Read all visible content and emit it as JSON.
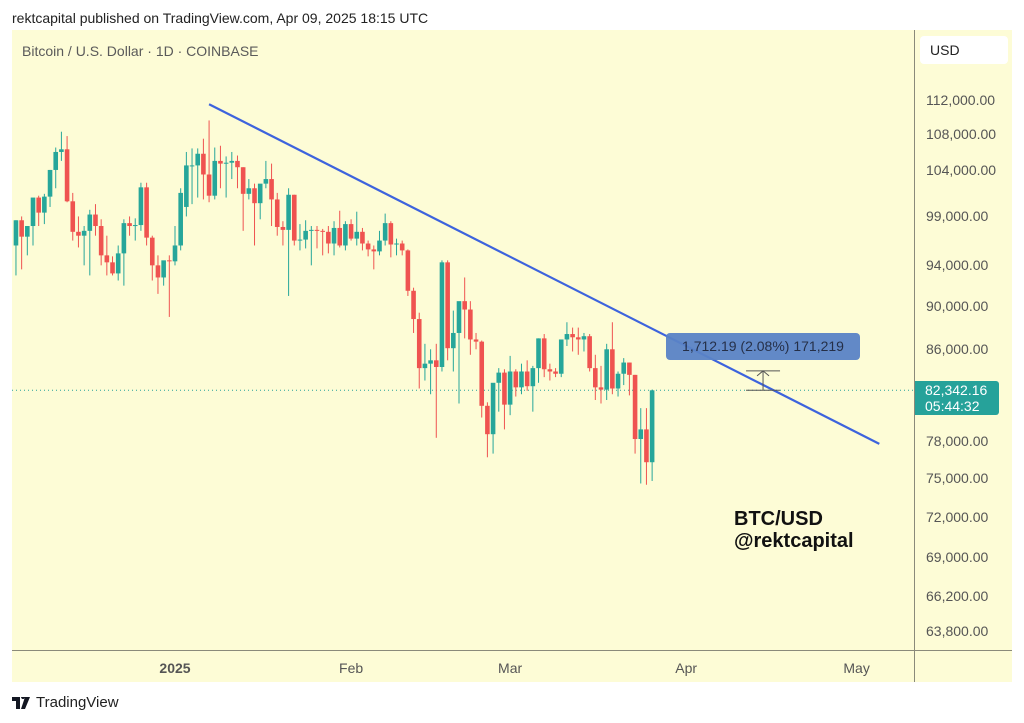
{
  "header": {
    "published_line": "rektcapital published on TradingView.com, Apr 09, 2025 18:15 UTC"
  },
  "chart_title": "Bitcoin / U.S. Dollar · 1D · COINBASE",
  "currency_button": "USD",
  "last_price": {
    "value": "82,342.16",
    "countdown": "05:44:32",
    "color": "#26a29a"
  },
  "measure_label": "1,712.19 (2.08%) 171,219",
  "watermark": {
    "line1": "BTC/USD",
    "line2": "@rektcapital"
  },
  "footer": {
    "logo_text": "TradingView"
  },
  "colors": {
    "up": "#26a69a",
    "down": "#ef5350",
    "trendline": "#3d63dd",
    "background": "#fdfcd6"
  },
  "chart_data": {
    "type": "candlestick",
    "title": "Bitcoin / U.S. Dollar · 1D · COINBASE",
    "xlabel": "",
    "ylabel": "USD",
    "y_scale": "log",
    "y_ticks": [
      112000,
      108000,
      104000,
      99000,
      94000,
      90000,
      86000,
      78000,
      75000,
      72000,
      69000,
      66200,
      63800
    ],
    "y_tick_labels": [
      "112,000.00",
      "108,000.00",
      "104,000.00",
      "99,000.00",
      "94,000.00",
      "90,000.00",
      "86,000.00",
      "78,000.00",
      "75,000.00",
      "72,000.00",
      "69,000.00",
      "66,200.00",
      "63,800.00"
    ],
    "x_tick_labels": [
      {
        "label": "2025",
        "day": 0,
        "bold": true
      },
      {
        "label": "Feb",
        "day": 31
      },
      {
        "label": "Mar",
        "day": 59
      },
      {
        "label": "Apr",
        "day": 90
      },
      {
        "label": "May",
        "day": 120
      }
    ],
    "last_price": 82342.16,
    "trendline": {
      "start": {
        "day": 6,
        "price": 111500
      },
      "end": {
        "day": 124,
        "price": 77800
      }
    },
    "measure_tool": {
      "day": 103,
      "from": 82342,
      "to": 84054,
      "change": 1712.19,
      "pct": 2.08
    },
    "candles_start_day": -28,
    "ohlc": [
      [
        96000,
        98600,
        93000,
        98600
      ],
      [
        98600,
        99000,
        93600,
        96900
      ],
      [
        96900,
        98000,
        95000,
        98000
      ],
      [
        98000,
        100800,
        96000,
        101000
      ],
      [
        101000,
        101200,
        98000,
        99400
      ],
      [
        99400,
        101400,
        98200,
        101100
      ],
      [
        101100,
        104000,
        100000,
        104000
      ],
      [
        104000,
        106500,
        102000,
        106000
      ],
      [
        106000,
        108300,
        105000,
        106300
      ],
      [
        106300,
        107800,
        100500,
        100600
      ],
      [
        100600,
        101500,
        96500,
        97400
      ],
      [
        97400,
        99000,
        95800,
        97000
      ],
      [
        97000,
        98000,
        94000,
        97500
      ],
      [
        97500,
        99700,
        93000,
        99200
      ],
      [
        99200,
        100300,
        97000,
        98000
      ],
      [
        98000,
        98700,
        94000,
        95000
      ],
      [
        95000,
        97000,
        93000,
        94300
      ],
      [
        94300,
        94900,
        93000,
        93200
      ],
      [
        93200,
        96000,
        92500,
        95200
      ],
      [
        95200,
        98700,
        92000,
        98300
      ],
      [
        98300,
        99000,
        97000,
        98000
      ],
      [
        98000,
        98800,
        96500,
        98100
      ],
      [
        98100,
        102600,
        97500,
        102100
      ],
      [
        102100,
        102600,
        96000,
        96800
      ],
      [
        96800,
        97000,
        92500,
        94000
      ],
      [
        94000,
        95000,
        91200,
        92800
      ],
      [
        92800,
        94000,
        92000,
        94500
      ],
      [
        94500,
        95000,
        89000,
        94400
      ],
      [
        94400,
        98000,
        94000,
        96000
      ],
      [
        96000,
        102000,
        95500,
        101500
      ],
      [
        100000,
        106000,
        99000,
        104500
      ],
      [
        104500,
        106400,
        100300,
        104500
      ],
      [
        104500,
        106400,
        101000,
        105800
      ],
      [
        105800,
        107500,
        100800,
        103500
      ],
      [
        103500,
        109600,
        100500,
        101200
      ],
      [
        101200,
        106500,
        100800,
        105000
      ],
      [
        105000,
        106700,
        102000,
        104700
      ],
      [
        104700,
        105500,
        101000,
        104800
      ],
      [
        104800,
        106000,
        103000,
        105000
      ],
      [
        105000,
        105600,
        102000,
        104300
      ],
      [
        104300,
        104300,
        97500,
        101400
      ],
      [
        101400,
        103000,
        100800,
        102000
      ],
      [
        102000,
        102500,
        96000,
        100400
      ],
      [
        100400,
        102300,
        98700,
        102500
      ],
      [
        102500,
        105000,
        102000,
        103000
      ],
      [
        103000,
        104700,
        98000,
        100800
      ],
      [
        100800,
        101500,
        97000,
        97900
      ],
      [
        97900,
        98500,
        96000,
        97600
      ],
      [
        97600,
        102000,
        91000,
        101300
      ],
      [
        101300,
        101300,
        96000,
        96500
      ],
      [
        96500,
        98200,
        95500,
        96600
      ],
      [
        96600,
        98600,
        95700,
        97500
      ],
      [
        97500,
        98000,
        94000,
        97600
      ],
      [
        97600,
        98000,
        95700,
        97500
      ],
      [
        97500,
        97700,
        95000,
        97400
      ],
      [
        97400,
        98000,
        95200,
        96200
      ],
      [
        96200,
        98500,
        95000,
        97800
      ],
      [
        97800,
        99600,
        95800,
        96000
      ],
      [
        96000,
        98500,
        95500,
        98200
      ],
      [
        98200,
        98700,
        96500,
        96700
      ],
      [
        96700,
        99500,
        96000,
        97400
      ],
      [
        97400,
        97800,
        95500,
        96200
      ],
      [
        96200,
        96500,
        94900,
        95600
      ],
      [
        95600,
        96000,
        93600,
        95400
      ],
      [
        95400,
        97500,
        95000,
        96500
      ],
      [
        96500,
        99300,
        96000,
        98300
      ],
      [
        98300,
        98500,
        94800,
        96100
      ],
      [
        96100,
        96700,
        95000,
        96200
      ],
      [
        96200,
        96500,
        95000,
        95500
      ],
      [
        95500,
        95600,
        91000,
        91500
      ],
      [
        91500,
        91800,
        87500,
        88800
      ],
      [
        88800,
        89400,
        82500,
        84300
      ],
      [
        84300,
        86500,
        83200,
        84700
      ],
      [
        84700,
        86000,
        82000,
        85000
      ],
      [
        85000,
        86500,
        78300,
        84400
      ],
      [
        84400,
        94500,
        84000,
        94300
      ],
      [
        94300,
        94500,
        85000,
        86100
      ],
      [
        86100,
        89600,
        84000,
        87500
      ],
      [
        87500,
        88000,
        81200,
        90500
      ],
      [
        90500,
        92800,
        87000,
        89700
      ],
      [
        89700,
        90500,
        85500,
        86900
      ],
      [
        86900,
        87500,
        86000,
        86700
      ],
      [
        86700,
        86800,
        80000,
        81000
      ],
      [
        81000,
        81300,
        76700,
        78600
      ],
      [
        78600,
        82500,
        77000,
        83000
      ],
      [
        83000,
        84300,
        80500,
        83900
      ],
      [
        83900,
        84200,
        79000,
        81100
      ],
      [
        81100,
        85400,
        80200,
        84000
      ],
      [
        84000,
        84200,
        81800,
        82600
      ],
      [
        82600,
        84700,
        82000,
        84000
      ],
      [
        84000,
        85000,
        82300,
        82700
      ],
      [
        82700,
        84500,
        80500,
        84300
      ],
      [
        84300,
        87000,
        83000,
        87000
      ],
      [
        87000,
        87400,
        83500,
        84200
      ],
      [
        84200,
        84700,
        83200,
        84000
      ],
      [
        84000,
        84300,
        83500,
        83800
      ],
      [
        83800,
        86500,
        83500,
        86900
      ],
      [
        86900,
        88500,
        86300,
        87400
      ],
      [
        87400,
        88000,
        85800,
        87100
      ],
      [
        87100,
        88000,
        85500,
        86900
      ],
      [
        86900,
        87500,
        85800,
        87200
      ],
      [
        87200,
        87400,
        84000,
        84300
      ],
      [
        84300,
        85500,
        81500,
        82600
      ],
      [
        82600,
        84500,
        81200,
        82400
      ],
      [
        82400,
        86500,
        81500,
        86000
      ],
      [
        86000,
        88500,
        82000,
        82500
      ],
      [
        82500,
        84000,
        81800,
        83800
      ],
      [
        83800,
        85200,
        82800,
        84800
      ],
      [
        84800,
        84800,
        81900,
        83700
      ],
      [
        83700,
        83700,
        77000,
        78200
      ],
      [
        78200,
        80800,
        74600,
        79000
      ],
      [
        79000,
        80800,
        74500,
        76300
      ],
      [
        76300,
        82400,
        74800,
        82342
      ]
    ]
  }
}
